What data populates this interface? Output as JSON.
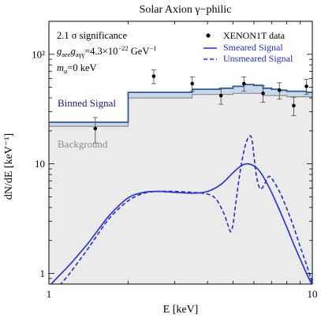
{
  "chart_data": {
    "type": "line",
    "title": "Solar Axion γ−philic",
    "xlabel": "E [keV]",
    "ylabel": "dN/dE [keV⁻¹]",
    "x_scale": "log",
    "y_scale": "log",
    "xlim": [
      1,
      10
    ],
    "ylim": [
      0.8,
      200
    ],
    "x_ticks": [
      {
        "value": 1,
        "label": "1"
      },
      {
        "value": 10,
        "label": "10"
      }
    ],
    "y_ticks": [
      {
        "value": 1,
        "label": "1"
      },
      {
        "value": 10,
        "label": "10"
      },
      {
        "value": 100,
        "label": "10²"
      }
    ],
    "annotations": {
      "significance": "2.1 σ significance",
      "coupling_prefix": "g",
      "coupling_sub1": "aee",
      "coupling_mid": "g",
      "coupling_sub2": "aγγ",
      "coupling_value": "=4.3×10",
      "coupling_exp": "−22",
      "coupling_unit": " GeV",
      "coupling_unit_exp": "−1",
      "mass_prefix": "m",
      "mass_sub": "a",
      "mass_value": "=0 keV",
      "binned_label": "Binned Signal",
      "background_label": "Background"
    },
    "legend": {
      "placement": "top-right",
      "items": [
        {
          "label": "XENON1T data",
          "style": "points"
        },
        {
          "label": "Smeared Signal",
          "style": "solid"
        },
        {
          "label": "Unsmeared Signal",
          "style": "dashed"
        }
      ]
    },
    "colors": {
      "signal": "#1f2fd6",
      "binned_line": "#2a5a9a",
      "binned_fill": "#c9d8e8",
      "background_fill": "#ebebeb",
      "background_line": "#8c8c8c",
      "background_label": "#8c8c8c",
      "binned_label": "#1a1a8c",
      "data": "#000000"
    },
    "background": {
      "edges": [
        1,
        2,
        3.5,
        4.5,
        5,
        5.5,
        6,
        6.5,
        7,
        7.5,
        8,
        8.5,
        9,
        9.5,
        10
      ],
      "values": [
        22,
        40,
        43,
        43,
        44,
        44,
        44,
        42,
        42,
        42,
        41,
        41,
        41,
        41
      ]
    },
    "binned_signal": {
      "edges": [
        1,
        2,
        3.5,
        4.5,
        5,
        5.5,
        6,
        6.5,
        7,
        7.5,
        8,
        8.5,
        9,
        9.5,
        10
      ],
      "values": [
        24,
        45,
        48,
        49,
        51,
        53,
        52,
        49,
        48,
        47,
        46,
        46,
        46,
        45
      ]
    },
    "data_points": [
      {
        "x": 1.5,
        "y": 21,
        "err": 5.5
      },
      {
        "x": 2.5,
        "y": 63,
        "err": 9
      },
      {
        "x": 3.5,
        "y": 54,
        "err": 8
      },
      {
        "x": 4.5,
        "y": 42,
        "err": 7
      },
      {
        "x": 5.5,
        "y": 54,
        "err": 8
      },
      {
        "x": 6.5,
        "y": 44,
        "err": 7.5
      },
      {
        "x": 7.5,
        "y": 47,
        "err": 8
      },
      {
        "x": 8.5,
        "y": 34,
        "err": 6.5
      },
      {
        "x": 9.5,
        "y": 51,
        "err": 8
      }
    ],
    "series": [
      {
        "name": "Smeared Signal",
        "style": "solid",
        "x": [
          1,
          1.05,
          1.1,
          1.2,
          1.3,
          1.4,
          1.5,
          1.7,
          2,
          2.3,
          2.6,
          3,
          3.5,
          4,
          4.5,
          5,
          5.3,
          5.6,
          5.9,
          6.2,
          6.5,
          7,
          7.5,
          8,
          8.5,
          9,
          9.5,
          10
        ],
        "y": [
          0.76,
          0.86,
          0.97,
          1.2,
          1.5,
          1.85,
          2.3,
          3.4,
          4.9,
          5.5,
          5.6,
          5.5,
          5.4,
          5.6,
          6.5,
          8.3,
          9.4,
          10.0,
          9.8,
          9.0,
          7.7,
          5.5,
          3.8,
          2.65,
          1.85,
          1.35,
          1.0,
          0.78
        ]
      },
      {
        "name": "Unsmeared Signal",
        "style": "dashed",
        "x": [
          1.1,
          1.2,
          1.3,
          1.4,
          1.5,
          1.7,
          2,
          2.3,
          2.6,
          3,
          3.5,
          4,
          4.3,
          4.6,
          4.8,
          4.9,
          5,
          5.1,
          5.25,
          5.4,
          5.6,
          5.8,
          5.9,
          6.0,
          6.15,
          6.35,
          6.6,
          6.8,
          7,
          7.5,
          8,
          8.5,
          9,
          9.5,
          10
        ],
        "y": [
          0.78,
          1.0,
          1.3,
          1.65,
          2.1,
          3.2,
          4.6,
          5.4,
          5.6,
          5.6,
          5.5,
          5.3,
          4.8,
          3.6,
          2.7,
          2.4,
          2.8,
          4.0,
          6.8,
          10.5,
          15.5,
          18.0,
          16.5,
          12.0,
          7.5,
          5.9,
          6.6,
          7.6,
          7.4,
          5.6,
          3.9,
          2.65,
          1.75,
          1.2,
          0.82
        ]
      }
    ]
  }
}
